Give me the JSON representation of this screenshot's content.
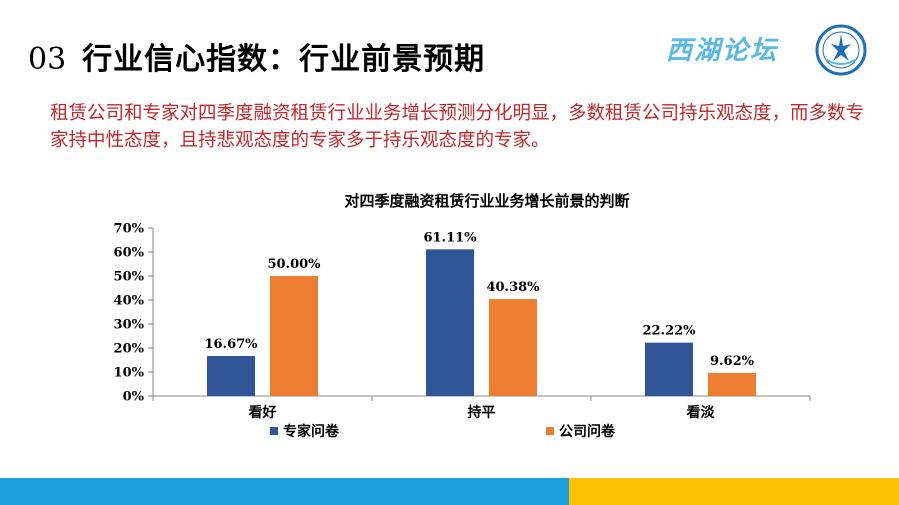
{
  "header": {
    "number": "03",
    "title": "行业信心指数：行业前景预期",
    "brand": "西湖论坛"
  },
  "subtitle": "租赁公司和专家对四季度融资租赁行业业务增长预测分化明显，多数租赁公司持乐观态度，而多数专家持中性态度，且持悲观态度的专家多于持乐观态度的专家。",
  "colors": {
    "series_expert": "#2f5597",
    "series_company": "#ed7d31",
    "subtitle": "#c0282c",
    "footer_left": "#1ea0dc",
    "footer_right": "#fcc100"
  },
  "chart_data": {
    "type": "bar",
    "title": "对四季度融资租赁行业业务增长前景的判断",
    "categories": [
      "看好",
      "持平",
      "看淡"
    ],
    "series": [
      {
        "name": "专家问卷",
        "values": [
          16.67,
          61.11,
          22.22
        ],
        "labels": [
          "16.67%",
          "61.11%",
          "22.22%"
        ]
      },
      {
        "name": "公司问卷",
        "values": [
          50.0,
          40.38,
          9.62
        ],
        "labels": [
          "50.00%",
          "40.38%",
          "9.62%"
        ]
      }
    ],
    "ylim": [
      0,
      70
    ],
    "yticks": [
      "0%",
      "10%",
      "20%",
      "30%",
      "40%",
      "50%",
      "60%",
      "70%"
    ],
    "legend": "bottom",
    "grid": false
  }
}
